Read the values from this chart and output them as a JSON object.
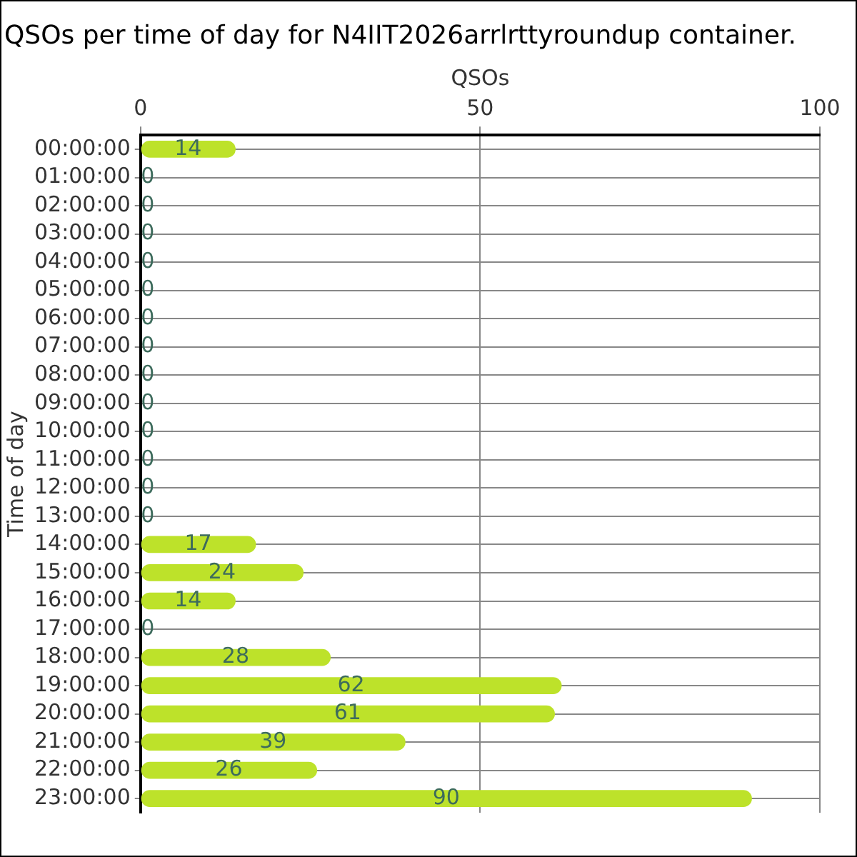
{
  "chart_data": {
    "type": "bar",
    "orientation": "horizontal",
    "title": "QSOs per time of day for N4IIT2026arrlrttyroundup container.",
    "xlabel": "QSOs",
    "ylabel": "Time of day",
    "categories": [
      "00:00:00",
      "01:00:00",
      "02:00:00",
      "03:00:00",
      "04:00:00",
      "05:00:00",
      "06:00:00",
      "07:00:00",
      "08:00:00",
      "09:00:00",
      "10:00:00",
      "11:00:00",
      "12:00:00",
      "13:00:00",
      "14:00:00",
      "15:00:00",
      "16:00:00",
      "17:00:00",
      "18:00:00",
      "19:00:00",
      "20:00:00",
      "21:00:00",
      "22:00:00",
      "23:00:00"
    ],
    "values": [
      14,
      0,
      0,
      0,
      0,
      0,
      0,
      0,
      0,
      0,
      0,
      0,
      0,
      0,
      17,
      24,
      14,
      0,
      28,
      62,
      61,
      39,
      26,
      90
    ],
    "color": "#bde22a",
    "xlim": [
      0,
      100
    ],
    "xticks": [
      0,
      50,
      100
    ],
    "grid": true,
    "data_labels": true,
    "legend": false
  }
}
